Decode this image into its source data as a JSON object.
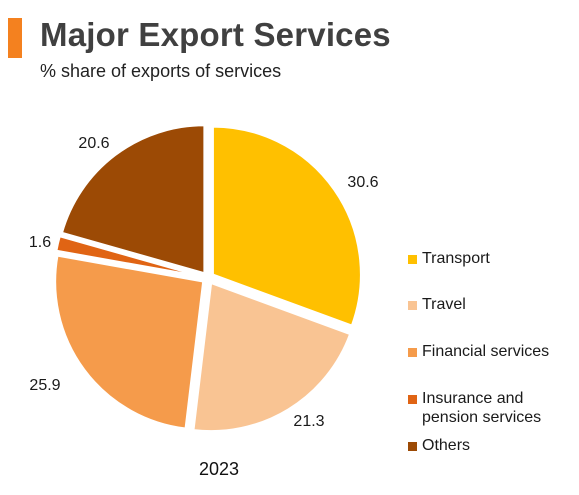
{
  "header": {
    "title": "Major Export Services",
    "subtitle": "% share of exports of services",
    "accent_color": "#f4811f"
  },
  "chart_data": {
    "type": "pie",
    "title": "Major Export Services",
    "subtitle": "% share of exports of services",
    "caption": "2023",
    "legend_position": "right",
    "slices": [
      {
        "label": "Transport",
        "value": 30.6,
        "display": "30.6",
        "color": "#ffc000"
      },
      {
        "label": "Travel",
        "value": 21.3,
        "display": "21.3",
        "color": "#f9c493"
      },
      {
        "label": "Financial services",
        "value": 25.9,
        "display": "25.9",
        "color": "#f59b4b"
      },
      {
        "label": "Insurance and pension services",
        "value": 1.6,
        "display": "1.6",
        "color": "#e06414"
      },
      {
        "label": "Others",
        "value": 20.6,
        "display": "20.6",
        "color": "#9c4a05"
      }
    ]
  },
  "legend": {
    "items": [
      {
        "lines": [
          "Transport"
        ],
        "color": "#ffc000"
      },
      {
        "lines": [
          "Travel"
        ],
        "color": "#f9c493"
      },
      {
        "lines": [
          "Financial services"
        ],
        "color": "#f59b4b"
      },
      {
        "lines": [
          "Insurance and",
          "pension services"
        ],
        "color": "#e06414"
      },
      {
        "lines": [
          "Others"
        ],
        "color": "#9c4a05"
      }
    ]
  }
}
